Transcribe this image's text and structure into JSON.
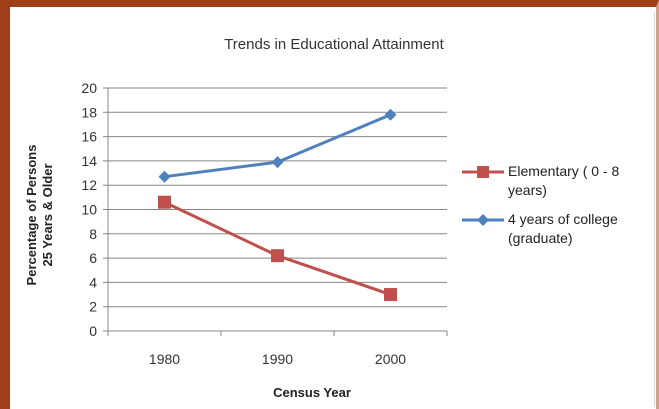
{
  "chart_data": {
    "type": "line",
    "title": "Trends in Educational Attainment",
    "xlabel": "Census Year",
    "ylabel": "Percentage of Persons\n25 Years & Older",
    "categories": [
      "1980",
      "1990",
      "2000"
    ],
    "ylim": [
      0,
      20
    ],
    "yticks": [
      0,
      2,
      4,
      6,
      8,
      10,
      12,
      14,
      16,
      18,
      20
    ],
    "grid": true,
    "legend_position": "right",
    "series": [
      {
        "name": "Elementary ( 0 - 8\nyears)",
        "values": [
          10.6,
          6.2,
          3.0
        ],
        "color": "#c0504d",
        "marker": "square"
      },
      {
        "name": "4 years of college\n(graduate)",
        "values": [
          12.7,
          13.9,
          17.8
        ],
        "color": "#4f81bd",
        "marker": "diamond"
      }
    ]
  }
}
